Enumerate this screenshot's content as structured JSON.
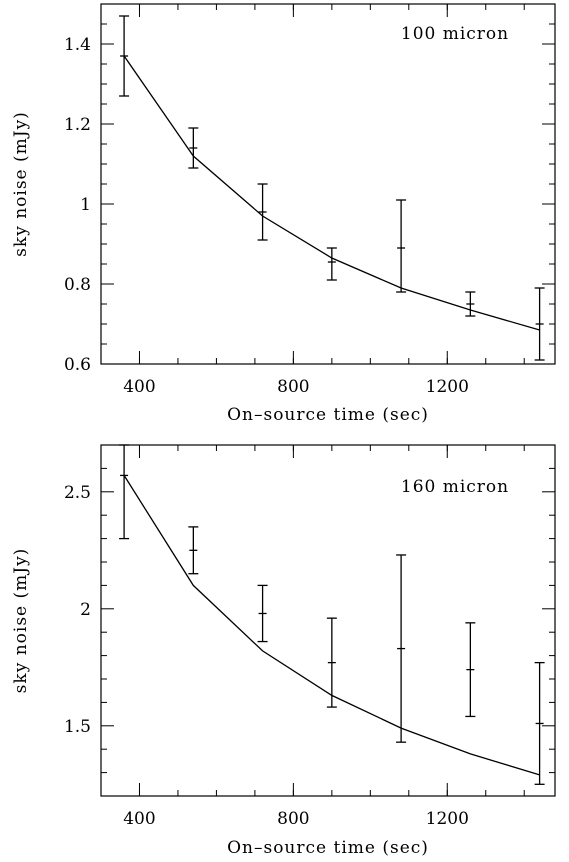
{
  "chart_data": [
    {
      "type": "line",
      "panel_label": "100 micron",
      "xlabel": "On–source time (sec)",
      "ylabel": "sky noise (mJy)",
      "xlim": [
        300,
        1480
      ],
      "ylim": [
        0.6,
        1.5
      ],
      "x_ticks": [
        400,
        800,
        1200
      ],
      "y_ticks": [
        0.6,
        0.8,
        1.0,
        1.2,
        1.4
      ],
      "y_tick_labels": [
        "0.6",
        "0.8",
        "1",
        "1.2",
        "1.4"
      ],
      "series": [
        {
          "type": "errorbar",
          "x": [
            360,
            540,
            720,
            900,
            1080,
            1260,
            1440
          ],
          "y": [
            1.37,
            1.14,
            0.98,
            0.855,
            0.89,
            0.75,
            0.7
          ],
          "y_low": [
            1.27,
            1.09,
            0.91,
            0.81,
            0.78,
            0.72,
            0.61
          ],
          "y_high": [
            1.47,
            1.19,
            1.05,
            0.89,
            1.01,
            0.78,
            0.79
          ]
        },
        {
          "type": "line",
          "x": [
            360,
            540,
            720,
            900,
            1080,
            1260,
            1440
          ],
          "y": [
            1.37,
            1.12,
            0.97,
            0.865,
            0.79,
            0.735,
            0.685
          ]
        }
      ]
    },
    {
      "type": "line",
      "panel_label": "160 micron",
      "xlabel": "On–source time (sec)",
      "ylabel": "sky noise (mJy)",
      "xlim": [
        300,
        1480
      ],
      "ylim": [
        1.2,
        2.7
      ],
      "x_ticks": [
        400,
        800,
        1200
      ],
      "y_ticks": [
        1.5,
        2.0,
        2.5
      ],
      "y_tick_labels": [
        "1.5",
        "2",
        "2.5"
      ],
      "series": [
        {
          "type": "errorbar",
          "x": [
            360,
            540,
            720,
            900,
            1080,
            1260,
            1440
          ],
          "y": [
            2.57,
            2.25,
            1.98,
            1.77,
            1.83,
            1.74,
            1.51
          ],
          "y_low": [
            2.3,
            2.15,
            1.86,
            1.58,
            1.43,
            1.54,
            1.25
          ],
          "y_high": [
            2.7,
            2.35,
            2.1,
            1.96,
            2.23,
            1.94,
            1.77
          ]
        },
        {
          "type": "line",
          "x": [
            360,
            540,
            720,
            900,
            1080,
            1260,
            1440
          ],
          "y": [
            2.57,
            2.1,
            1.82,
            1.63,
            1.49,
            1.38,
            1.29
          ]
        }
      ]
    }
  ]
}
